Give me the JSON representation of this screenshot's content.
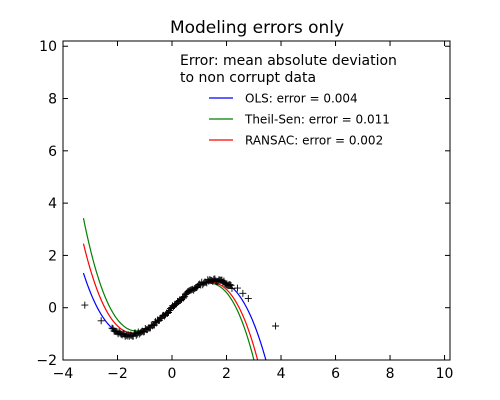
{
  "chart_data": {
    "type": "line",
    "title": "Modeling errors only",
    "xlabel": "",
    "ylabel": "",
    "xlim": [
      -4,
      10.2
    ],
    "ylim": [
      -2,
      10.2
    ],
    "x_ticks": [
      -4,
      -2,
      0,
      2,
      4,
      6,
      8,
      10
    ],
    "y_ticks": [
      -2,
      0,
      2,
      4,
      6,
      8,
      10
    ],
    "x_tick_labels": [
      "−4",
      "−2",
      "0",
      "2",
      "4",
      "6",
      "8",
      "10"
    ],
    "y_tick_labels": [
      "−2",
      "0",
      "2",
      "4",
      "6",
      "8",
      "10"
    ],
    "grid": false,
    "legend": {
      "placement": "top-right",
      "title_lines": [
        "Error: mean absolute deviation",
        " to non corrupt data"
      ]
    },
    "series": [
      {
        "name": "OLS: error = 0.004",
        "color": "#0000ff",
        "x_range": [
          -3.25,
          3.8
        ],
        "coefficients": [
          0.0,
          1.0,
          0.0,
          -0.1333
        ]
      },
      {
        "name": "Theil-Sen: error = 0.011",
        "color": "#008000",
        "x_range": [
          -3.25,
          3.35
        ],
        "coefficients": [
          0.0,
          1.028,
          0.015,
          -0.1925
        ]
      },
      {
        "name": "RANSAC: error = 0.002",
        "color": "#ff0000",
        "x_range": [
          -3.25,
          3.5
        ],
        "coefficients": [
          0.0,
          1.02,
          0.0,
          -0.168
        ]
      }
    ],
    "points": {
      "marker": "+",
      "color": "#000000",
      "outliers": [
        {
          "x": -3.2,
          "y": 0.1
        },
        {
          "x": -2.6,
          "y": -0.5
        },
        {
          "x": 2.4,
          "y": 0.75
        },
        {
          "x": 2.6,
          "y": 0.55
        },
        {
          "x": 2.8,
          "y": 0.35
        },
        {
          "x": 3.8,
          "y": -0.7
        }
      ],
      "dense_range": [
        -2.2,
        2.2
      ],
      "dense_count": 120
    }
  }
}
